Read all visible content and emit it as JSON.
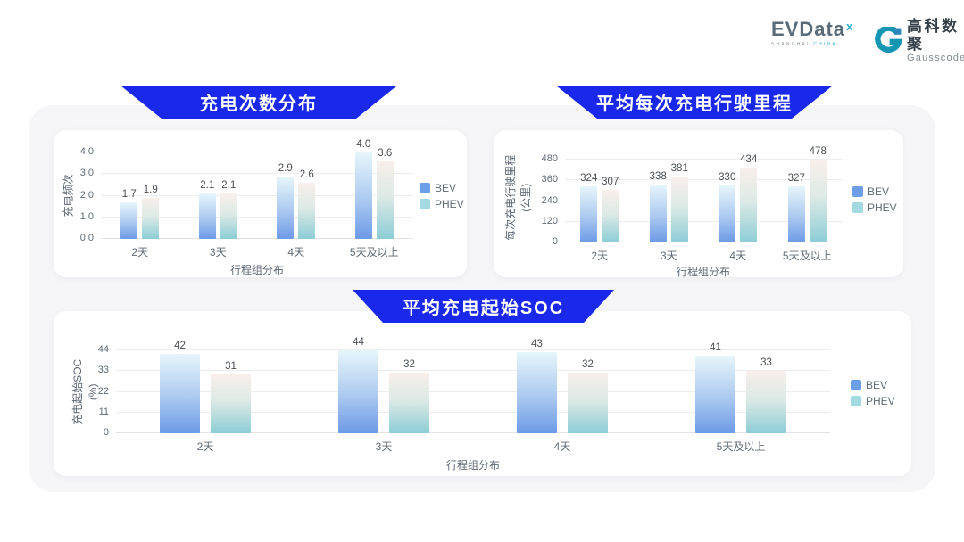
{
  "header": {
    "evdata": {
      "text": "EVData",
      "sup": "x",
      "subtext_left": "SHANGHAI",
      "subtext_right": "CHINA"
    },
    "gausscode": {
      "cn": "高科数聚",
      "en": "Gausscode"
    }
  },
  "chart_data": [
    {
      "type": "bar",
      "title": "充电次数分布",
      "y_title_lines": [
        "充电频次"
      ],
      "xlabel": "行程组分布",
      "categories": [
        "2天",
        "3天",
        "4天",
        "5天及以上"
      ],
      "series": [
        {
          "name": "BEV",
          "values": [
            1.7,
            2.1,
            2.9,
            4.0
          ],
          "labels": [
            "1.7",
            "2.1",
            "2.9",
            "4.0"
          ]
        },
        {
          "name": "PHEV",
          "values": [
            1.9,
            2.1,
            2.6,
            3.6
          ],
          "labels": [
            "1.9",
            "2.1",
            "2.6",
            "3.6"
          ]
        }
      ],
      "ticks": [
        0,
        1,
        2,
        3,
        4
      ],
      "tick_labels": [
        "0.0",
        "1.0",
        "2.0",
        "3.0",
        "4.0"
      ],
      "ylim": [
        0,
        4
      ],
      "grid": true,
      "legend_position": "right"
    },
    {
      "type": "bar",
      "title": "平均每次充电行驶里程",
      "y_title_lines": [
        "每次充电行驶里程",
        "(公里)"
      ],
      "xlabel": "行程组分布",
      "categories": [
        "2天",
        "3天",
        "4天",
        "5天及以上"
      ],
      "series": [
        {
          "name": "BEV",
          "values": [
            324,
            338,
            330,
            327
          ],
          "labels": [
            "324",
            "338",
            "330",
            "327"
          ]
        },
        {
          "name": "PHEV",
          "values": [
            307,
            381,
            434,
            478
          ],
          "labels": [
            "307",
            "381",
            "434",
            "478"
          ]
        }
      ],
      "ticks": [
        0,
        120,
        240,
        360,
        480
      ],
      "tick_labels": [
        "0",
        "120",
        "240",
        "360",
        "480"
      ],
      "ylim": [
        0,
        480
      ],
      "grid": true,
      "legend_position": "right"
    },
    {
      "type": "bar",
      "title": "平均充电起始SOC",
      "y_title_lines": [
        "充电起始SOC",
        "(%)"
      ],
      "xlabel": "行程组分布",
      "categories": [
        "2天",
        "3天",
        "4天",
        "5天及以上"
      ],
      "series": [
        {
          "name": "BEV",
          "values": [
            42,
            44,
            43,
            41
          ],
          "labels": [
            "42",
            "44",
            "43",
            "41"
          ]
        },
        {
          "name": "PHEV",
          "values": [
            31,
            32,
            32,
            33
          ],
          "labels": [
            "31",
            "32",
            "32",
            "33"
          ]
        }
      ],
      "ticks": [
        0,
        11,
        22,
        33,
        44
      ],
      "tick_labels": [
        "0",
        "11",
        "22",
        "33",
        "44"
      ],
      "ylim": [
        0,
        44
      ],
      "grid": true,
      "legend_position": "right"
    }
  ],
  "colors": {
    "banner_blue": "#1a28ec",
    "bev_gradient_top": "#e7f6fb",
    "bev_gradient_bottom": "#6d9ae7",
    "phev_gradient_top": "#f9efeb",
    "phev_gradient_bottom": "#8ccdd6",
    "legend_bev": "#6d9fe8",
    "legend_phev": "#a3d9e0",
    "logo_teal": "#1796b4",
    "panel_background": "#f6f6f8"
  }
}
